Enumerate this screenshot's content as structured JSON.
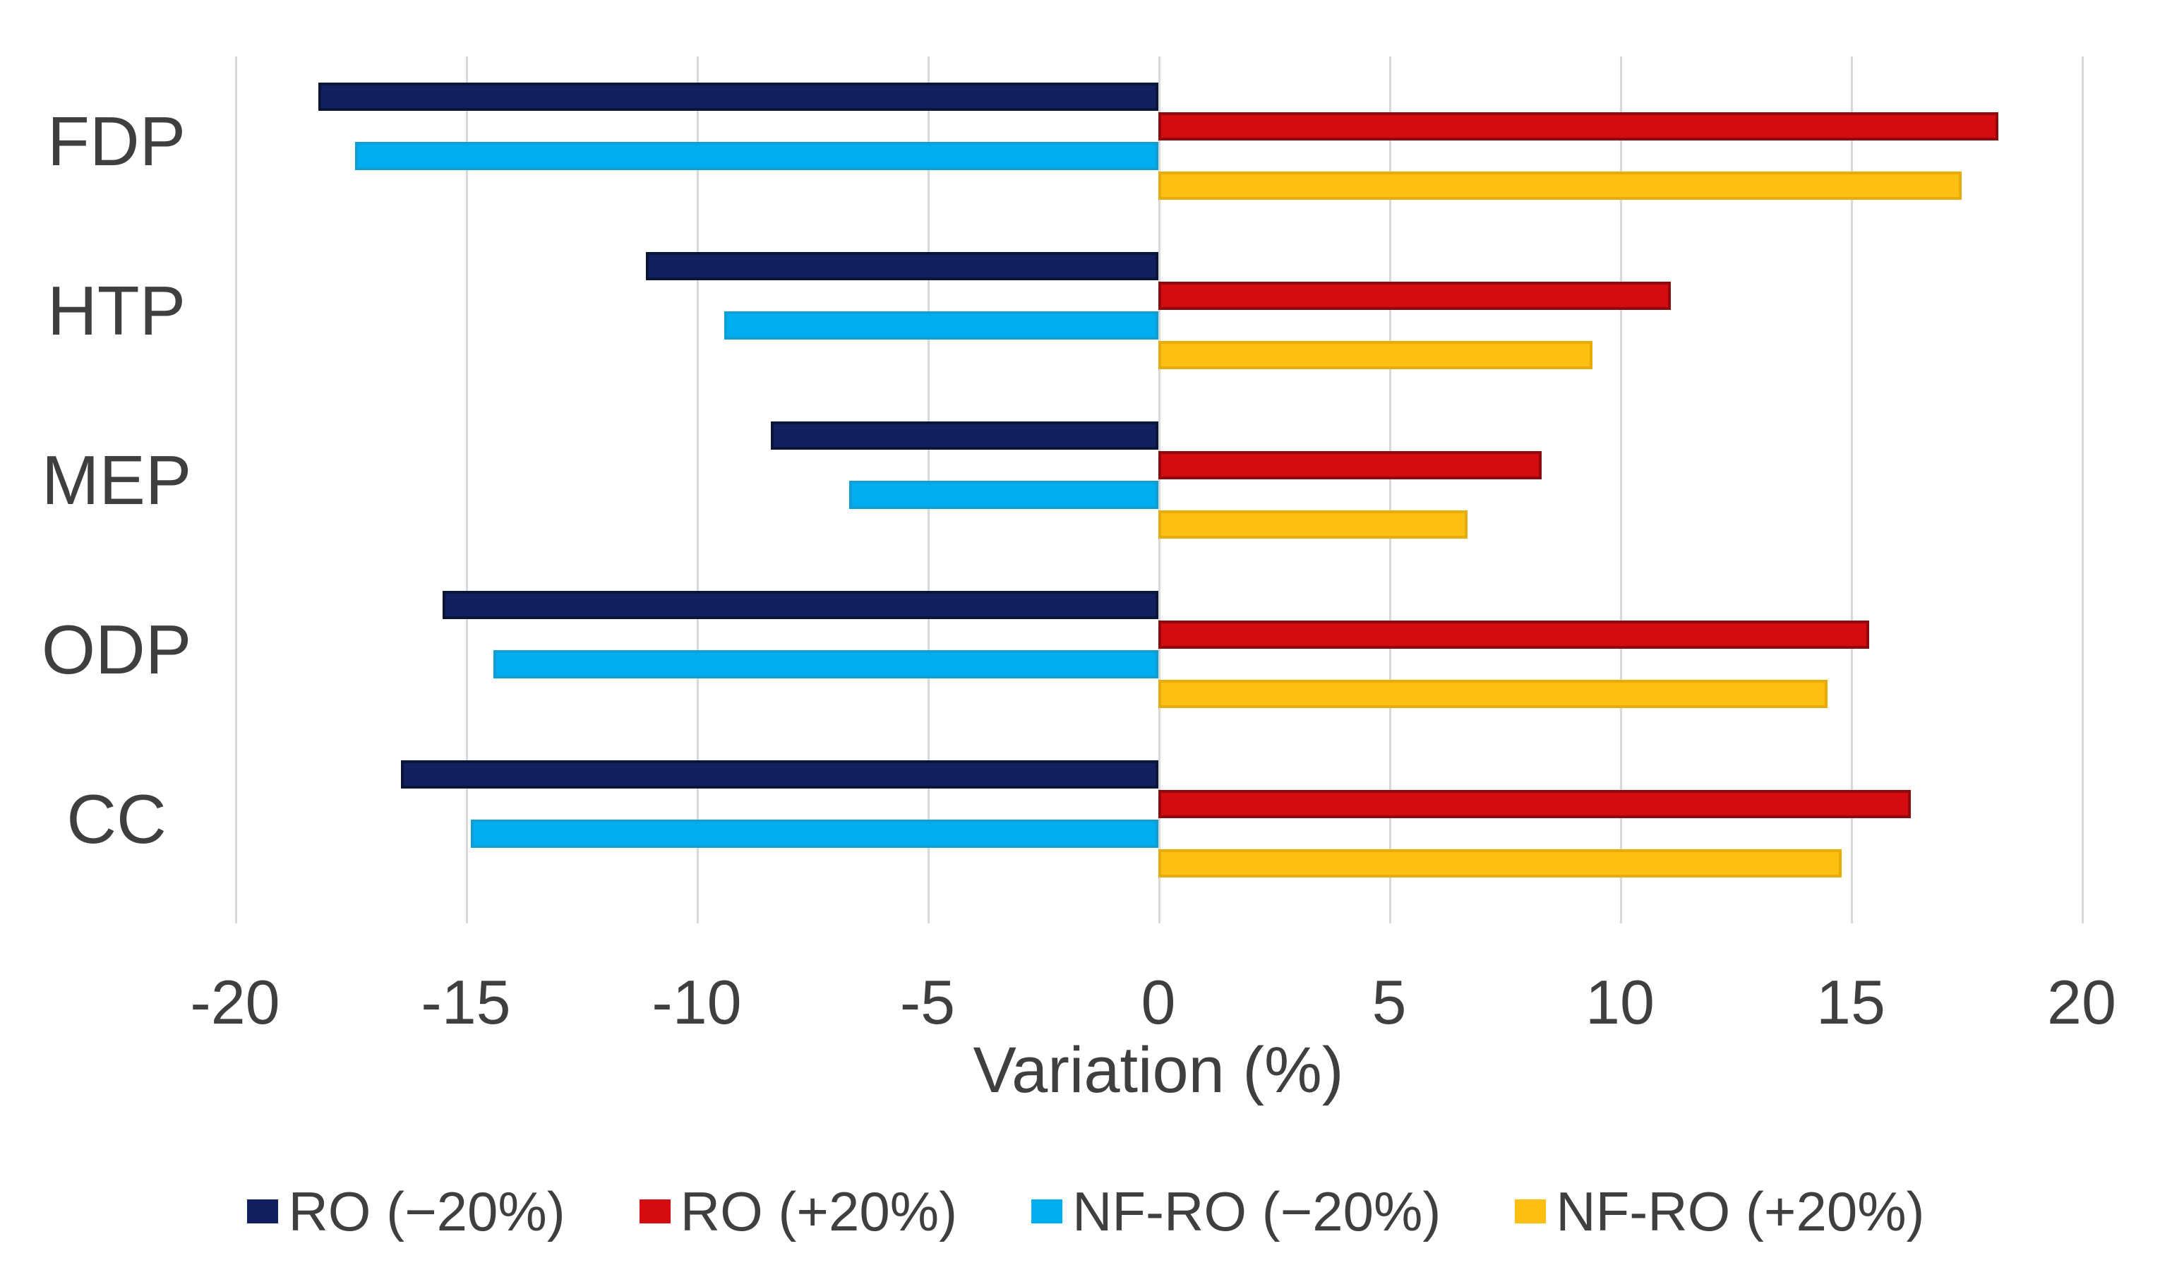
{
  "chart_data": {
    "type": "bar",
    "orientation": "horizontal",
    "title": "",
    "xlabel": "Variation (%)",
    "ylabel": "",
    "xlim": [
      -20,
      20
    ],
    "x_ticks": [
      -20,
      -15,
      -10,
      -5,
      0,
      5,
      10,
      15,
      20
    ],
    "grid": true,
    "legend_position": "bottom",
    "categories": [
      "FDP",
      "HTP",
      "MEP",
      "ODP",
      "CC"
    ],
    "series": [
      {
        "name": "RO (−20%)",
        "color": "#12205f",
        "border_color": "#0a1538",
        "values": [
          -18.2,
          -11.1,
          -8.4,
          -15.5,
          -16.4
        ]
      },
      {
        "name": "RO (+20%)",
        "color": "#d40b10",
        "border_color": "#8f0a0a",
        "values": [
          18.2,
          11.1,
          8.3,
          15.4,
          16.3
        ]
      },
      {
        "name": "NF-RO (−20%)",
        "color": "#00aeef",
        "border_color": "#0d9ed6",
        "values": [
          -17.4,
          -9.4,
          -6.7,
          -14.4,
          -14.9
        ]
      },
      {
        "name": "NF-RO (+20%)",
        "color": "#fdbf12",
        "border_color": "#e8ac06",
        "values": [
          17.4,
          9.4,
          6.7,
          14.5,
          14.8
        ]
      }
    ]
  },
  "axis": {
    "tick_labels": [
      "-20",
      "-15",
      "-10",
      "-5",
      "0",
      "5",
      "10",
      "15",
      "20"
    ],
    "xlabel": "Variation (%)"
  },
  "colors": {
    "background": "#ffffff",
    "grid": "#d9d9d9",
    "text": "#3f3f3f"
  }
}
